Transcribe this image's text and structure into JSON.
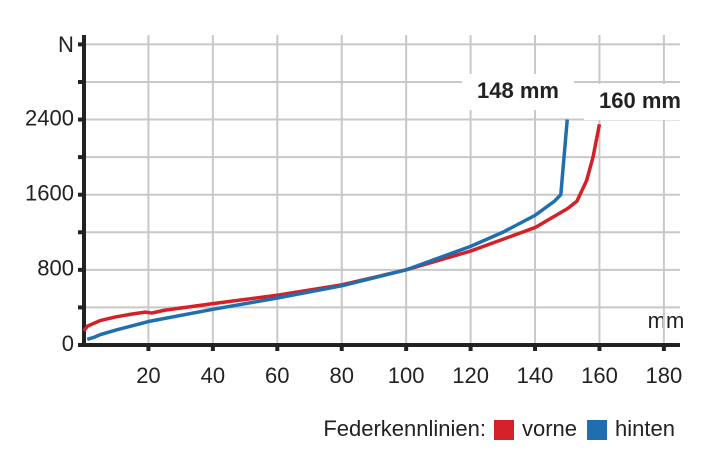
{
  "chart_data": {
    "type": "line",
    "x_label": "mm",
    "y_label": "N",
    "xlim": [
      0,
      185
    ],
    "ylim": [
      0,
      3300
    ],
    "xticks": [
      20,
      40,
      60,
      80,
      100,
      120,
      140,
      160,
      180
    ],
    "yticks": [
      0,
      800,
      1600,
      2400
    ],
    "minor_yticks": [
      400,
      1200,
      2000,
      2800,
      3200
    ],
    "grid": true,
    "legend_title": "Federkennlinien:",
    "series": [
      {
        "name": "vorne",
        "color": "#d42027",
        "x": [
          0,
          1,
          5,
          10,
          15,
          19,
          21,
          25,
          40,
          60,
          80,
          100,
          120,
          140,
          150,
          153,
          156,
          158,
          160
        ],
        "values": [
          150,
          200,
          260,
          300,
          330,
          350,
          340,
          370,
          440,
          530,
          640,
          800,
          1000,
          1250,
          1450,
          1530,
          1750,
          2000,
          2350
        ]
      },
      {
        "name": "hinten",
        "color": "#1f6fb0",
        "x": [
          1,
          3,
          5,
          10,
          20,
          40,
          60,
          80,
          100,
          120,
          130,
          140,
          146,
          148,
          149,
          150
        ],
        "values": [
          60,
          80,
          110,
          160,
          250,
          380,
          500,
          630,
          800,
          1050,
          1200,
          1380,
          1530,
          1600,
          2000,
          2400
        ]
      }
    ],
    "annotations": [
      "148 mm",
      "160 mm"
    ]
  }
}
